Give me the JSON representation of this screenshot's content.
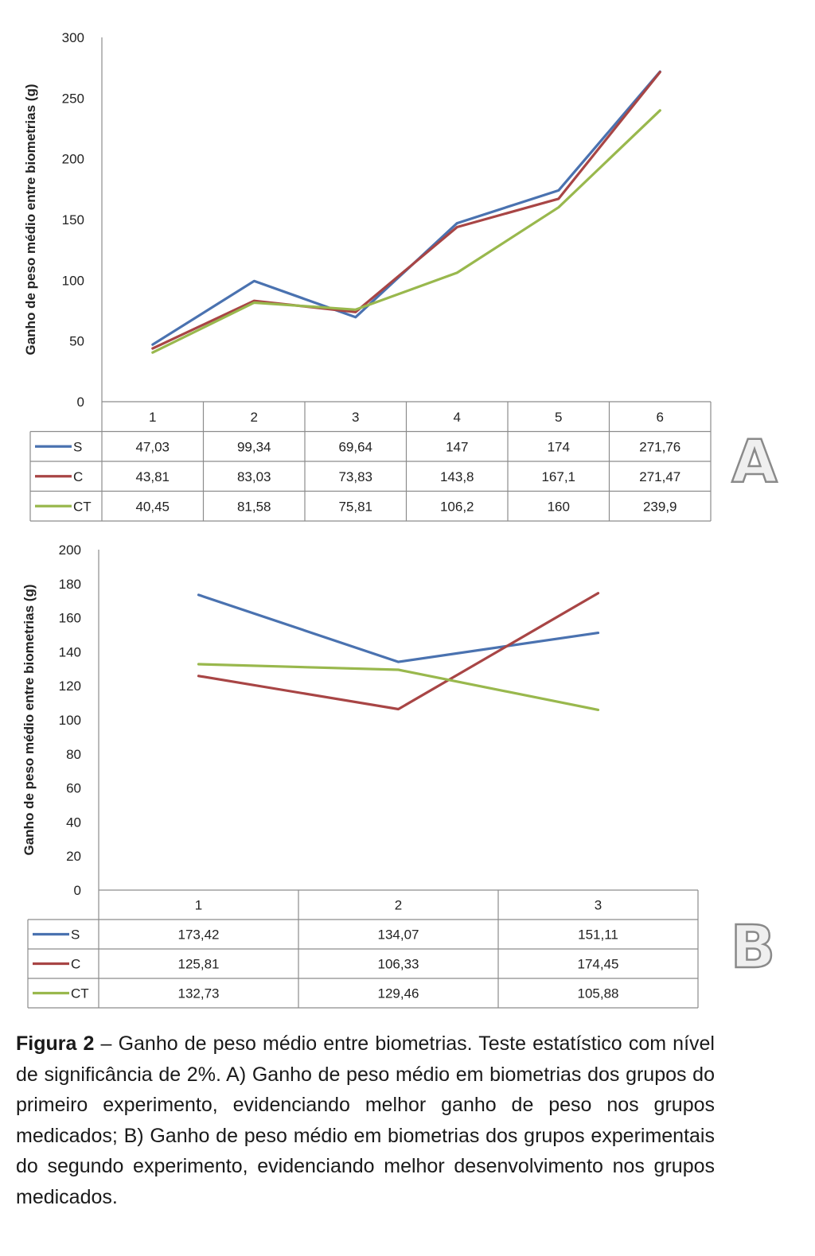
{
  "chart_data": [
    {
      "type": "line",
      "panel_label": "A",
      "ylabel": "Ganho de peso médio entre biometrias (g)",
      "ylim": [
        0,
        300
      ],
      "yticks": [
        0,
        50,
        100,
        150,
        200,
        250,
        300
      ],
      "categories": [
        "1",
        "2",
        "3",
        "4",
        "5",
        "6"
      ],
      "series": [
        {
          "name": "S",
          "color": "#4a72b0",
          "values": [
            47.03,
            99.34,
            69.64,
            147,
            174,
            271.76
          ],
          "labels": [
            "47,03",
            "99,34",
            "69,64",
            "147",
            "174",
            "271,76"
          ]
        },
        {
          "name": "C",
          "color": "#a84545",
          "values": [
            43.81,
            83.03,
            73.83,
            143.8,
            167.1,
            271.47
          ],
          "labels": [
            "43,81",
            "83,03",
            "73,83",
            "143,8",
            "167,1",
            "271,47"
          ]
        },
        {
          "name": "CT",
          "color": "#99b84d",
          "values": [
            40.45,
            81.58,
            75.81,
            106.2,
            160,
            239.9
          ],
          "labels": [
            "40,45",
            "81,58",
            "75,81",
            "106,2",
            "160",
            "239,9"
          ]
        }
      ],
      "grid": false,
      "legend": "data table below chart"
    },
    {
      "type": "line",
      "panel_label": "B",
      "ylabel": "Ganho de peso médio entre biometrias (g)",
      "ylim": [
        0,
        200
      ],
      "yticks": [
        0,
        20,
        40,
        60,
        80,
        100,
        120,
        140,
        160,
        180,
        200
      ],
      "categories": [
        "1",
        "2",
        "3"
      ],
      "series": [
        {
          "name": "S",
          "color": "#4a72b0",
          "values": [
            173.42,
            134.07,
            151.11
          ],
          "labels": [
            "173,42",
            "134,07",
            "151,11"
          ]
        },
        {
          "name": "C",
          "color": "#a84545",
          "values": [
            125.81,
            106.33,
            174.45
          ],
          "labels": [
            "125,81",
            "106,33",
            "174,45"
          ]
        },
        {
          "name": "CT",
          "color": "#99b84d",
          "values": [
            132.73,
            129.46,
            105.88
          ],
          "labels": [
            "132,73",
            "129,46",
            "105,88"
          ]
        }
      ],
      "grid": false,
      "legend": "data table below chart"
    }
  ],
  "caption": {
    "label": "Figura 2",
    "text": " – Ganho de peso médio entre biometrias. Teste estatístico com nível  de significância de 2%. A) Ganho de peso médio em biometrias dos grupos do primeiro experimento, evidenciando melhor ganho de peso nos grupos medicados; B) Ganho de peso médio em biometrias dos grupos experimentais do segundo experimento, evidenciando melhor desenvolvimento nos grupos medicados."
  }
}
